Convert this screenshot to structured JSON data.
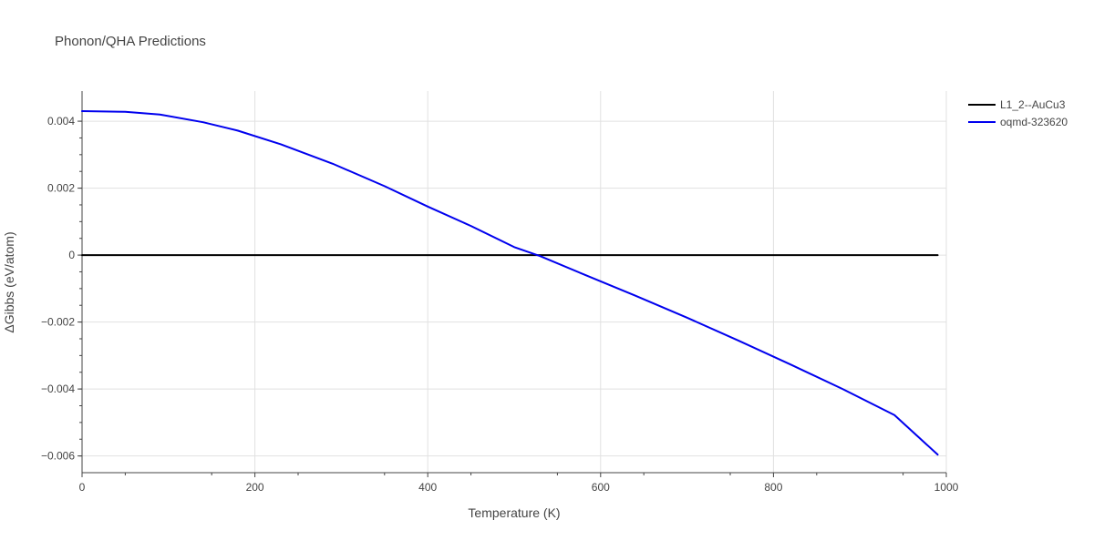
{
  "chart_data": {
    "type": "line",
    "title": "Phonon/QHA Predictions",
    "xlabel": "Temperature (K)",
    "ylabel": "ΔGibbs (eV/atom)",
    "xlim": [
      0,
      1000
    ],
    "ylim": [
      -0.0065,
      0.0049
    ],
    "x_ticks": [
      0,
      200,
      400,
      600,
      800,
      1000
    ],
    "x_tick_labels": [
      "0",
      "200",
      "400",
      "600",
      "800",
      "1000"
    ],
    "y_ticks": [
      0.004,
      0.002,
      0,
      -0.002,
      -0.004,
      -0.006
    ],
    "y_tick_labels": [
      "0.004",
      "0.002",
      "0",
      "−0.002",
      "−0.004",
      "−0.006"
    ],
    "grid": true,
    "legend_position": "top-right",
    "series": [
      {
        "name": "L1_2--AuCu3",
        "color": "#000000",
        "x": [
          0,
          990
        ],
        "y": [
          0,
          0
        ]
      },
      {
        "name": "oqmd-323620",
        "color": "#0000ee",
        "x": [
          0,
          50,
          90,
          140,
          180,
          230,
          290,
          350,
          400,
          450,
          500,
          530,
          580,
          640,
          700,
          760,
          820,
          880,
          940,
          990
        ],
        "y": [
          0.0043,
          0.00428,
          0.0042,
          0.00397,
          0.00372,
          0.00331,
          0.00273,
          0.00206,
          0.00145,
          0.00087,
          0.00024,
          -3e-05,
          -0.00057,
          -0.00121,
          -0.00187,
          -0.00256,
          -0.00327,
          -0.004,
          -0.00478,
          -0.00596
        ]
      }
    ]
  }
}
